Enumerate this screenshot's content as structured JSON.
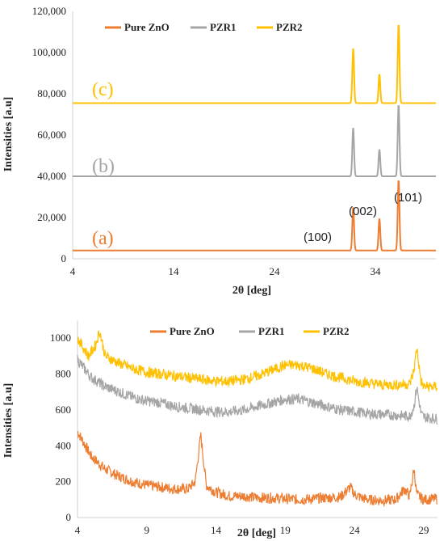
{
  "chart_data": [
    {
      "type": "line",
      "xlabel": "2θ [deg]",
      "ylabel": "Intensities [a.u]",
      "xlim": [
        4,
        40
      ],
      "ylim": [
        0,
        120000
      ],
      "xticks": [
        "4",
        "14",
        "24",
        "34"
      ],
      "xtick_values": [
        4,
        14,
        24,
        34
      ],
      "yticks": [
        "0",
        "20,000",
        "40,000",
        "60,000",
        "80,000",
        "100,000",
        "120,000"
      ],
      "ytick_values": [
        0,
        20000,
        40000,
        60000,
        80000,
        100000,
        120000
      ],
      "legend_position": "top",
      "series": [
        {
          "name": "Pure ZnO",
          "color": "#ED7D31",
          "baseline": 4000,
          "peaks": [
            {
              "x": 31.8,
              "y": 25000
            },
            {
              "x": 34.4,
              "y": 19500
            },
            {
              "x": 36.3,
              "y": 38500
            }
          ]
        },
        {
          "name": "PZR1",
          "color": "#A5A5A5",
          "baseline": 40000,
          "peaks": [
            {
              "x": 31.8,
              "y": 63500
            },
            {
              "x": 34.4,
              "y": 53000
            },
            {
              "x": 36.3,
              "y": 75000
            }
          ]
        },
        {
          "name": "PZR2",
          "color": "#FFC000",
          "baseline": 75500,
          "peaks": [
            {
              "x": 31.8,
              "y": 102000
            },
            {
              "x": 34.4,
              "y": 89500
            },
            {
              "x": 36.3,
              "y": 114000
            }
          ]
        }
      ],
      "annotations": [
        {
          "text": "(a)",
          "color": "#ED7D31"
        },
        {
          "text": "(b)",
          "color": "#A5A5A5"
        },
        {
          "text": "(c)",
          "color": "#FFC000"
        },
        {
          "text": "(100)",
          "color": "#222222"
        },
        {
          "text": "(002)",
          "color": "#222222"
        },
        {
          "text": "(101)",
          "color": "#222222"
        }
      ]
    },
    {
      "type": "line",
      "xlabel": "2θ [deg]",
      "ylabel": "Intensities [a.u]",
      "xlim": [
        4,
        30
      ],
      "ylim": [
        0,
        1100
      ],
      "xticks": [
        "4",
        "9",
        "14",
        "19",
        "24",
        "29"
      ],
      "xtick_values": [
        4,
        9,
        14,
        19,
        24,
        29
      ],
      "yticks": [
        "0",
        "200",
        "400",
        "600",
        "800",
        "1000"
      ],
      "ytick_values": [
        0,
        200,
        400,
        600,
        800,
        1000
      ],
      "legend_position": "top",
      "series": [
        {
          "name": "Pure ZnO",
          "color": "#ED7D31",
          "x": [
            4,
            5,
            6,
            7,
            8,
            9,
            10,
            11,
            12,
            12.5,
            12.9,
            13.3,
            14,
            15,
            16,
            17,
            18,
            19,
            20,
            21,
            22,
            23,
            23.7,
            24,
            24.5,
            25,
            26,
            27,
            27.6,
            28,
            28.3,
            28.5,
            28.8,
            29,
            30
          ],
          "y": [
            480,
            340,
            270,
            230,
            200,
            180,
            170,
            160,
            160,
            200,
            460,
            180,
            140,
            120,
            120,
            110,
            110,
            105,
            100,
            105,
            110,
            115,
            170,
            130,
            110,
            100,
            95,
            100,
            160,
            120,
            270,
            130,
            110,
            100,
            105
          ]
        },
        {
          "name": "PZR1",
          "color": "#A5A5A5",
          "x": [
            4,
            5,
            6,
            7,
            8,
            9,
            10,
            11,
            12,
            13,
            14,
            15,
            16,
            17,
            18,
            19,
            20,
            21,
            22,
            23,
            24,
            25,
            26,
            27,
            28,
            28.3,
            28.5,
            28.8,
            29,
            30
          ],
          "y": [
            880,
            780,
            730,
            700,
            670,
            650,
            640,
            620,
            610,
            600,
            590,
            590,
            600,
            620,
            640,
            660,
            660,
            640,
            620,
            600,
            590,
            580,
            575,
            570,
            565,
            620,
            730,
            580,
            560,
            550
          ]
        },
        {
          "name": "PZR2",
          "color": "#FFC000",
          "x": [
            4,
            4.8,
            5.3,
            5.6,
            6,
            7,
            8,
            9,
            10,
            11,
            12,
            13,
            14,
            15,
            16,
            17,
            18,
            19,
            20,
            21,
            22,
            23,
            24,
            25,
            26,
            27,
            28,
            28.3,
            28.5,
            28.8,
            29,
            30
          ],
          "y": [
            1000,
            900,
            960,
            1040,
            900,
            860,
            830,
            810,
            800,
            790,
            780,
            770,
            760,
            760,
            770,
            790,
            820,
            850,
            850,
            830,
            800,
            780,
            760,
            750,
            740,
            740,
            745,
            820,
            950,
            760,
            730,
            730
          ]
        }
      ]
    }
  ]
}
